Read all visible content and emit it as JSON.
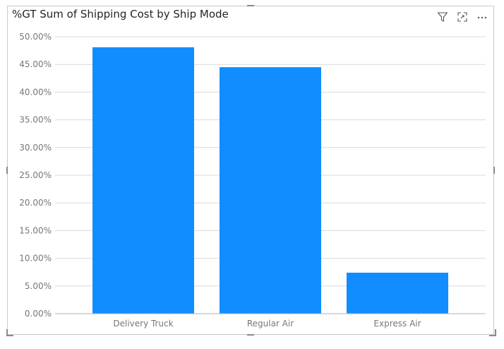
{
  "title": "%GT Sum of Shipping Cost by Ship Mode",
  "header_icons": [
    "filter-icon",
    "focus-mode-icon",
    "more-options-icon"
  ],
  "colors": {
    "bar": "#118DFF",
    "gridline": "#d9d9d9",
    "axis": "#b3b3b3",
    "tick_text": "#777777",
    "title_text": "#252423"
  },
  "chart_data": {
    "type": "bar",
    "title": "%GT Sum of Shipping Cost by Ship Mode",
    "categories": [
      "Delivery Truck",
      "Regular Air",
      "Express Air"
    ],
    "values": [
      48.1,
      44.5,
      7.4
    ],
    "value_unit": "%",
    "ylim": [
      0,
      50
    ],
    "yticks": [
      "0.00%",
      "5.00%",
      "10.00%",
      "15.00%",
      "20.00%",
      "25.00%",
      "30.00%",
      "35.00%",
      "40.00%",
      "45.00%",
      "50.00%"
    ],
    "ytick_values": [
      0,
      5,
      10,
      15,
      20,
      25,
      30,
      35,
      40,
      45,
      50
    ],
    "grid": true,
    "legend": "none",
    "xlabel": "",
    "ylabel": ""
  }
}
